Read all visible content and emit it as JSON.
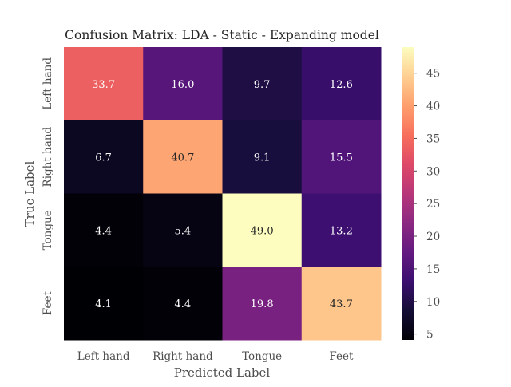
{
  "chart_data": {
    "type": "heatmap",
    "title": "Confusion Matrix: LDA - Static - Expanding model",
    "xlabel": "Predicted Label",
    "ylabel": "True Label",
    "x_categories": [
      "Left hand",
      "Right hand",
      "Tongue",
      "Feet"
    ],
    "y_categories": [
      "Left hand",
      "Right hand",
      "Tongue",
      "Feet"
    ],
    "values": [
      [
        33.7,
        16.0,
        9.7,
        12.6
      ],
      [
        6.7,
        40.7,
        9.1,
        15.5
      ],
      [
        4.4,
        5.4,
        49.0,
        13.2
      ],
      [
        4.1,
        4.4,
        19.8,
        43.7
      ]
    ],
    "value_labels": [
      [
        "33.7",
        "16.0",
        "9.7",
        "12.6"
      ],
      [
        "6.7",
        "40.7",
        "9.1",
        "15.5"
      ],
      [
        "4.4",
        "5.4",
        "49.0",
        "13.2"
      ],
      [
        "4.1",
        "4.4",
        "19.8",
        "43.7"
      ]
    ],
    "colormap": "magma",
    "colorbar": {
      "range": [
        4.1,
        49.0
      ],
      "ticks": [
        5,
        10,
        15,
        20,
        25,
        30,
        35,
        40,
        45
      ],
      "tick_labels": [
        "5",
        "10",
        "15",
        "20",
        "25",
        "30",
        "35",
        "40",
        "45"
      ]
    }
  }
}
